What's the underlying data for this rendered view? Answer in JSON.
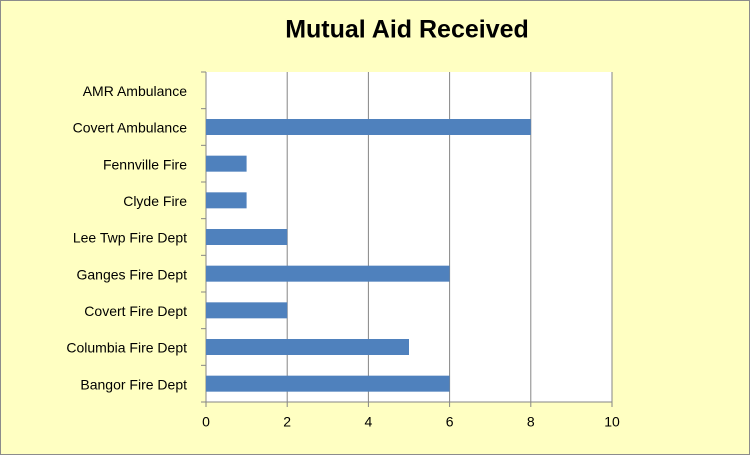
{
  "chart_data": {
    "type": "barh",
    "title": "Mutual Aid Received",
    "categories": [
      "AMR Ambulance",
      "Covert Ambulance",
      "Fennville Fire",
      "Clyde Fire",
      "Lee Twp Fire Dept",
      "Ganges Fire Dept",
      "Covert Fire Dept",
      "Columbia Fire Dept",
      "Bangor Fire Dept"
    ],
    "values": [
      0,
      8,
      1,
      1,
      2,
      6,
      2,
      5,
      6
    ],
    "color": "#4f81bd",
    "xlim": [
      0,
      10
    ],
    "xticks": [
      0,
      2,
      4,
      6,
      8,
      10
    ],
    "grid": true
  }
}
